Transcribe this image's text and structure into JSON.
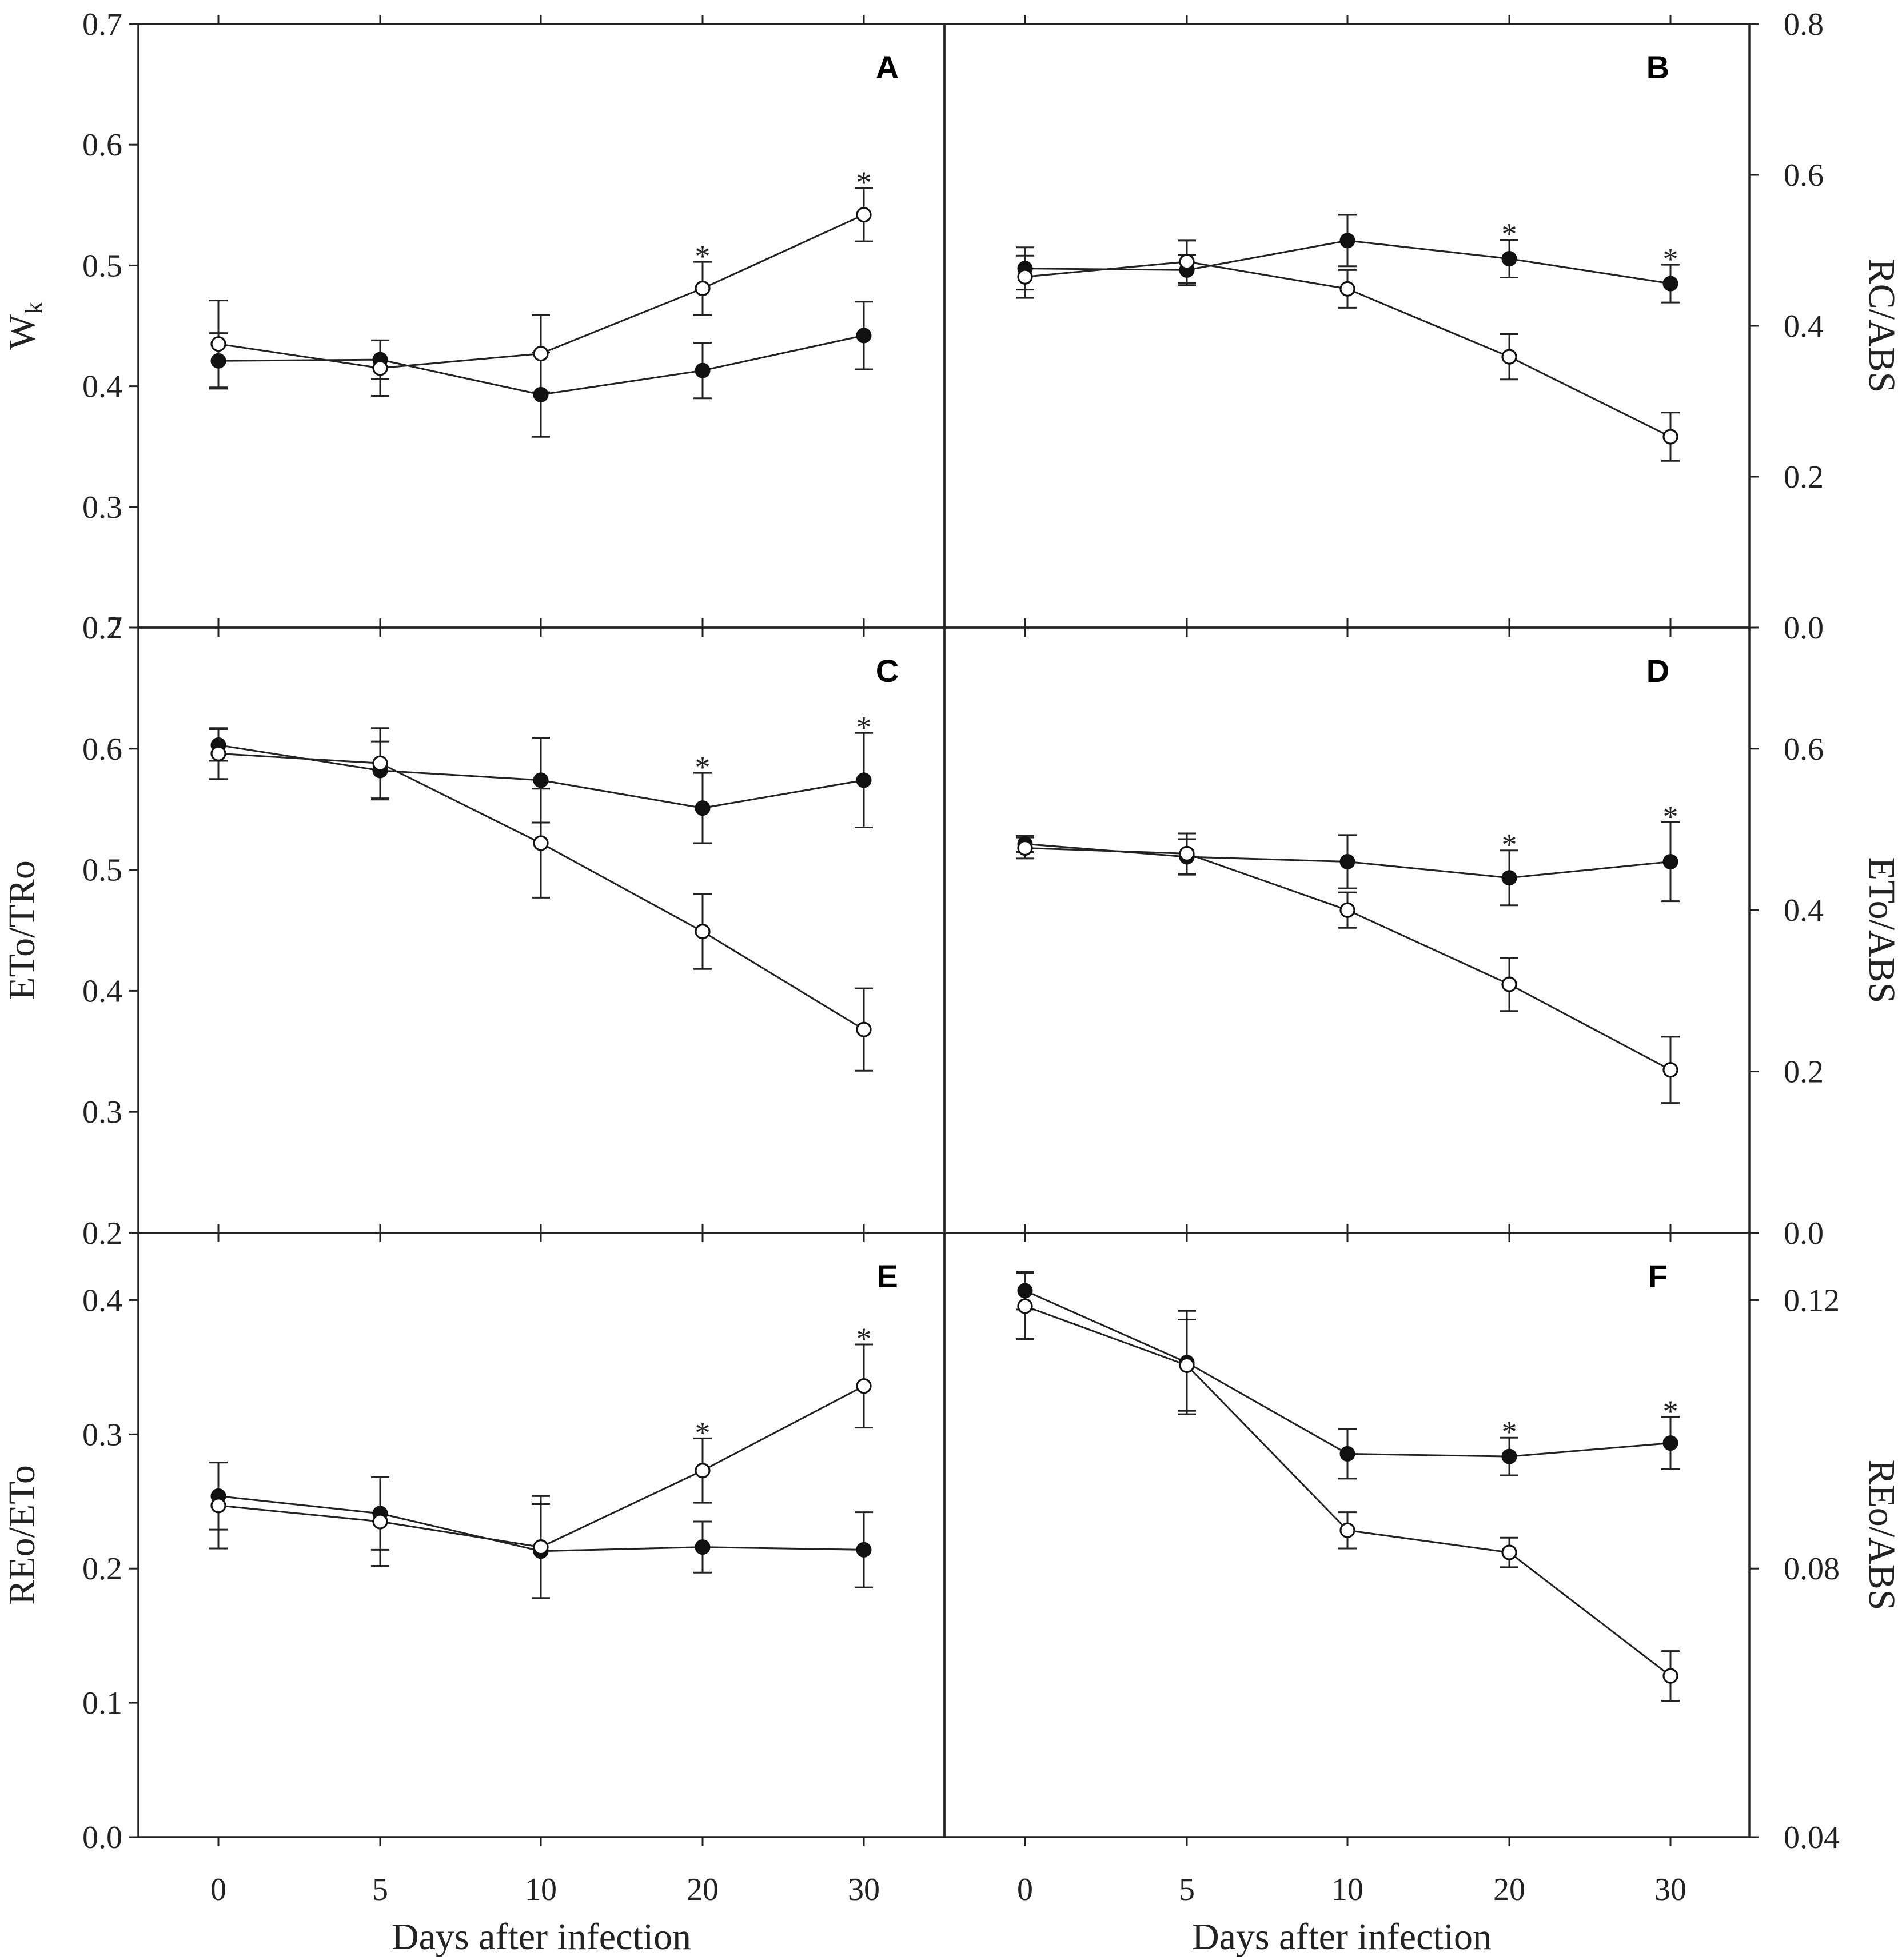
{
  "chart_data": [
    {
      "id": "A",
      "panel_label": "A",
      "type": "line",
      "ylabel": "W",
      "ylabel_sub": "k",
      "y_axis_side": "left",
      "ylim": [
        0.2,
        0.7
      ],
      "yticks": [
        "0.2",
        "0.3",
        "0.4",
        "0.5",
        "0.6",
        "0.7"
      ],
      "xcategories": [
        "0",
        "5",
        "10",
        "20",
        "30"
      ],
      "series": [
        {
          "name": "filled",
          "marker": "filled-circle",
          "values": [
            0.421,
            0.422,
            0.393,
            0.413,
            0.442
          ],
          "errors": [
            0.023,
            0.016,
            0.035,
            0.023,
            0.028
          ]
        },
        {
          "name": "open",
          "marker": "open-circle",
          "values": [
            0.435,
            0.415,
            0.427,
            0.481,
            0.542
          ],
          "errors": [
            0.036,
            0.023,
            0.032,
            0.022,
            0.022
          ]
        }
      ],
      "significance": [
        {
          "index": 3,
          "label": "*"
        },
        {
          "index": 4,
          "label": "*"
        }
      ]
    },
    {
      "id": "B",
      "panel_label": "B",
      "type": "line",
      "ylabel": "RC/ABS",
      "y_axis_side": "right",
      "ylim": [
        0.0,
        0.8
      ],
      "yticks": [
        "0.0",
        "0.2",
        "0.4",
        "0.6",
        "0.8"
      ],
      "xcategories": [
        "0",
        "5",
        "10",
        "20",
        "30"
      ],
      "series": [
        {
          "name": "filled",
          "marker": "filled-circle",
          "values": [
            0.476,
            0.474,
            0.513,
            0.489,
            0.456
          ],
          "errors": [
            0.028,
            0.02,
            0.034,
            0.025,
            0.025
          ]
        },
        {
          "name": "open",
          "marker": "open-circle",
          "values": [
            0.465,
            0.485,
            0.449,
            0.359,
            0.253
          ],
          "errors": [
            0.028,
            0.028,
            0.025,
            0.03,
            0.032
          ]
        }
      ],
      "significance": [
        {
          "index": 3,
          "label": "*"
        },
        {
          "index": 4,
          "label": "*"
        }
      ]
    },
    {
      "id": "C",
      "panel_label": "C",
      "type": "line",
      "ylabel": "ETo/TRo",
      "y_axis_side": "left",
      "ylim": [
        0.2,
        0.7
      ],
      "yticks": [
        "0.2",
        "0.3",
        "0.4",
        "0.5",
        "0.6",
        "0.7"
      ],
      "xcategories": [
        "0",
        "5",
        "10",
        "20",
        "30"
      ],
      "series": [
        {
          "name": "filled",
          "marker": "filled-circle",
          "values": [
            0.603,
            0.582,
            0.574,
            0.551,
            0.574
          ],
          "errors": [
            0.013,
            0.024,
            0.035,
            0.029,
            0.039
          ]
        },
        {
          "name": "open",
          "marker": "open-circle",
          "values": [
            0.596,
            0.588,
            0.522,
            0.449,
            0.368
          ],
          "errors": [
            0.021,
            0.029,
            0.045,
            0.031,
            0.034
          ]
        }
      ],
      "significance": [
        {
          "index": 3,
          "label": "*"
        },
        {
          "index": 4,
          "label": "*"
        }
      ]
    },
    {
      "id": "D",
      "panel_label": "D",
      "type": "line",
      "ylabel": "ETo/ABS",
      "y_axis_side": "right",
      "ylim": [
        0.0,
        0.75
      ],
      "yticks": [
        "0.0",
        "0.2",
        "0.4",
        "0.6"
      ],
      "xcategories": [
        "0",
        "5",
        "10",
        "20",
        "30"
      ],
      "series": [
        {
          "name": "filled",
          "marker": "filled-circle",
          "values": [
            0.482,
            0.466,
            0.46,
            0.44,
            0.46
          ],
          "errors": [
            0.01,
            0.022,
            0.033,
            0.034,
            0.049
          ]
        },
        {
          "name": "open",
          "marker": "open-circle",
          "values": [
            0.477,
            0.47,
            0.4,
            0.308,
            0.202
          ],
          "errors": [
            0.013,
            0.025,
            0.022,
            0.033,
            0.041
          ]
        }
      ],
      "significance": [
        {
          "index": 3,
          "label": "*"
        },
        {
          "index": 4,
          "label": "*"
        }
      ]
    },
    {
      "id": "E",
      "panel_label": "E",
      "type": "line",
      "ylabel": "REo/ETo",
      "y_axis_side": "left",
      "ylim": [
        0.0,
        0.45
      ],
      "yticks": [
        "0.0",
        "0.1",
        "0.2",
        "0.3",
        "0.4"
      ],
      "xcategories": [
        "0",
        "5",
        "10",
        "20",
        "30"
      ],
      "series": [
        {
          "name": "filled",
          "marker": "filled-circle",
          "values": [
            0.254,
            0.241,
            0.213,
            0.216,
            0.214
          ],
          "errors": [
            0.025,
            0.027,
            0.035,
            0.019,
            0.028
          ]
        },
        {
          "name": "open",
          "marker": "open-circle",
          "values": [
            0.247,
            0.235,
            0.216,
            0.273,
            0.336
          ],
          "errors": [
            0.032,
            0.033,
            0.038,
            0.024,
            0.031
          ]
        }
      ],
      "significance": [
        {
          "index": 3,
          "label": "*"
        },
        {
          "index": 4,
          "label": "*"
        }
      ]
    },
    {
      "id": "F",
      "panel_label": "F",
      "type": "line",
      "ylabel": "REo/ABS",
      "y_axis_side": "right",
      "ylim": [
        0.04,
        0.13
      ],
      "yticks": [
        "0.04",
        "0.08",
        "0.12"
      ],
      "xcategories": [
        "0",
        "5",
        "10",
        "20",
        "30"
      ],
      "series": [
        {
          "name": "filled",
          "marker": "filled-circle",
          "values": [
            0.1214,
            0.1107,
            0.0971,
            0.0967,
            0.0987
          ],
          "errors": [
            0.0028,
            0.0077,
            0.0037,
            0.0028,
            0.0039
          ]
        },
        {
          "name": "open",
          "marker": "open-circle",
          "values": [
            0.1191,
            0.1103,
            0.0857,
            0.0824,
            0.064
          ],
          "errors": [
            0.0049,
            0.0068,
            0.0027,
            0.0022,
            0.0037
          ]
        }
      ],
      "significance": [
        {
          "index": 3,
          "label": "*"
        },
        {
          "index": 4,
          "label": "*"
        }
      ]
    }
  ],
  "xlabel_left": "Days after infection",
  "xlabel_right": "Days after infection"
}
